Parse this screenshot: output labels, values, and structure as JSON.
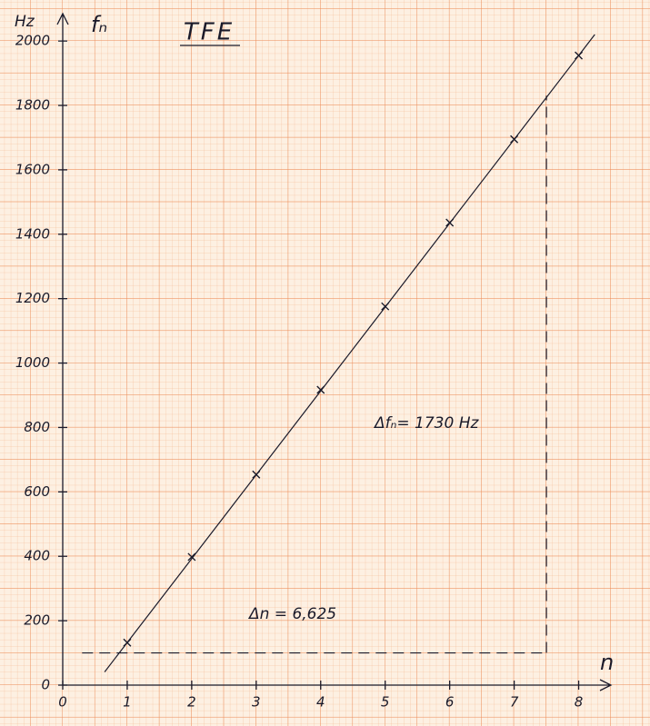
{
  "chart_data": {
    "type": "scatter",
    "title": "TFE",
    "ylabel_unit": "Hz",
    "ylabel": "fₙ",
    "xlabel": "n",
    "xlim": [
      0,
      8.5
    ],
    "ylim": [
      0,
      2085
    ],
    "xticks": [
      0,
      1,
      2,
      3,
      4,
      5,
      6,
      7,
      8
    ],
    "yticks": [
      0,
      200,
      400,
      600,
      800,
      1000,
      1200,
      1400,
      1600,
      1800,
      2000
    ],
    "x": [
      1,
      2,
      3,
      4,
      5,
      6,
      7,
      8
    ],
    "values": [
      132,
      398,
      654,
      917,
      1176,
      1436,
      1695,
      1955
    ],
    "color": "#1a1a2a",
    "fit_line": {
      "x": [
        0.65,
        8.25
      ],
      "y": [
        41,
        2020
      ]
    },
    "guides": {
      "x": [
        0.3,
        7.5
      ],
      "y": [
        100,
        1830
      ]
    },
    "annotations": [
      "Δfₙ= 1730 Hz",
      "Δn = 6,625"
    ]
  }
}
